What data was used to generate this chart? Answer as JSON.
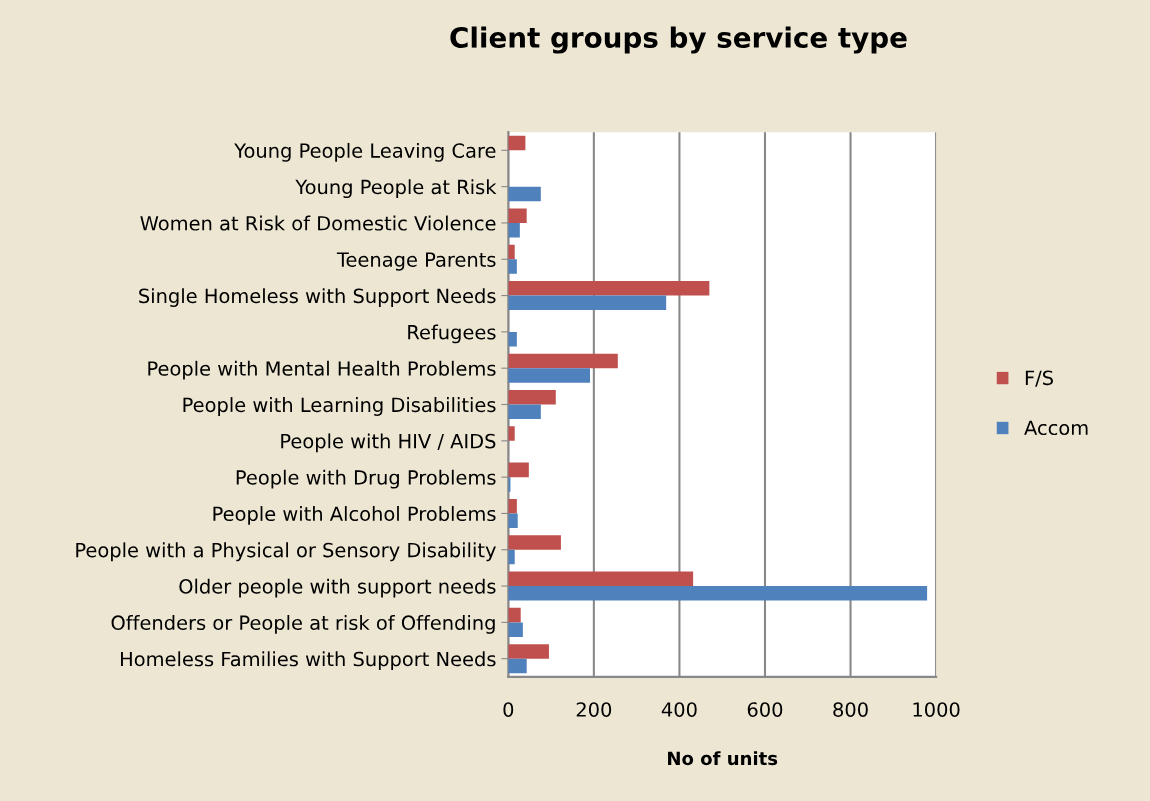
{
  "chart_data": {
    "type": "bar",
    "orientation": "horizontal",
    "title": "Client groups by service type",
    "xlabel": "No of units",
    "categories": [
      "Young People Leaving Care",
      "Young People at Risk",
      "Women at Risk of Domestic Violence",
      "Teenage Parents",
      "Single Homeless with Support Needs",
      "Refugees",
      "People with Mental Health Problems",
      "People with Learning Disabilities",
      "People with HIV / AIDS",
      "People with Drug Problems",
      "People with Alcohol Problems",
      "People with a Physical or Sensory Disability",
      "Older people with support needs",
      "Offenders or People at risk of Offending",
      "Homeless Families with Support Needs"
    ],
    "series": [
      {
        "name": "F/S",
        "color": "#c0504d",
        "values": [
          40,
          null,
          43,
          15,
          470,
          null,
          256,
          111,
          15,
          48,
          20,
          123,
          432,
          29,
          95
        ]
      },
      {
        "name": "Accom",
        "color": "#4f81bd",
        "values": [
          null,
          76,
          27,
          20,
          369,
          20,
          191,
          76,
          null,
          5,
          22,
          15,
          979,
          34,
          43
        ]
      }
    ],
    "xlim": [
      0,
      1000
    ],
    "xticks": [
      0,
      200,
      400,
      600,
      800,
      1000
    ],
    "grid": "x",
    "legend": "right"
  }
}
